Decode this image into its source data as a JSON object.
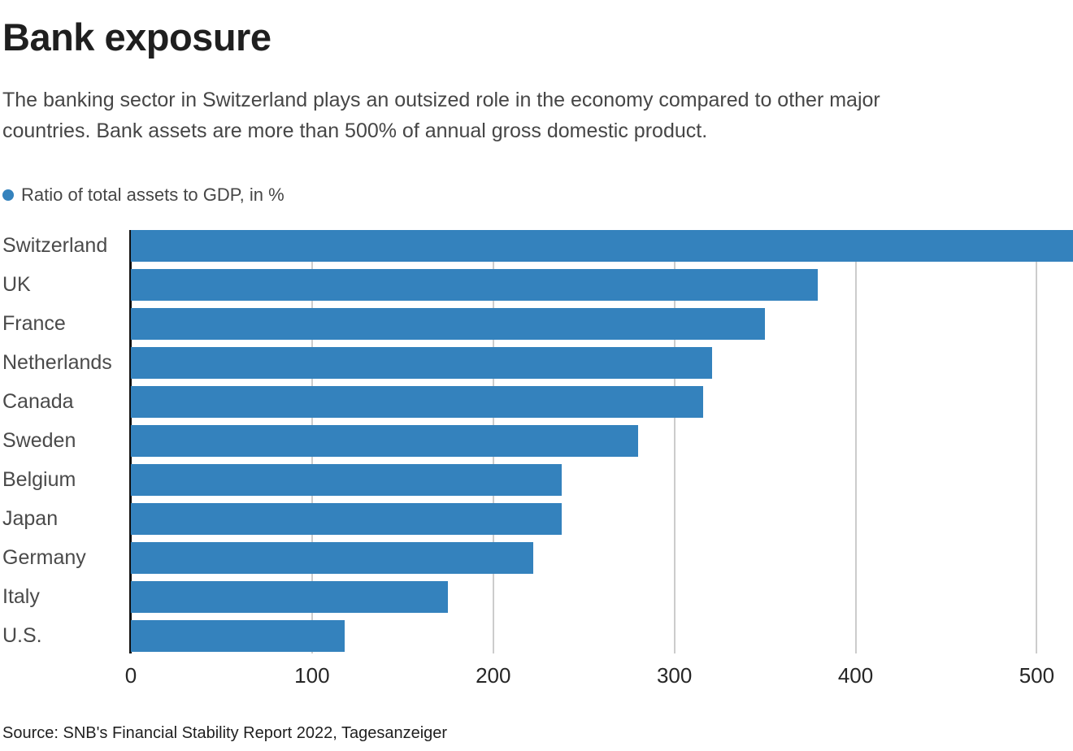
{
  "header": {
    "title": "Bank exposure",
    "subtitle_lines": [
      "The banking sector in Switzerland plays an outsized role in the economy compared to other major",
      "countries. Bank assets are more than 500% of annual gross domestic product."
    ]
  },
  "legend": {
    "label": "Ratio of total assets to GDP, in %"
  },
  "chart_data": {
    "type": "bar",
    "orientation": "horizontal",
    "title": "Bank exposure",
    "series_label": "Ratio of total assets to GDP, in %",
    "categories": [
      "Switzerland",
      "UK",
      "France",
      "Netherlands",
      "Canada",
      "Sweden",
      "Belgium",
      "Japan",
      "Germany",
      "Italy",
      "U.S."
    ],
    "values": [
      520,
      379,
      350,
      321,
      316,
      280,
      238,
      238,
      222,
      175,
      118
    ],
    "xlabel": "",
    "ylabel": "",
    "xlim": [
      0,
      520
    ],
    "xticks": [
      0,
      100,
      200,
      300,
      400,
      500
    ],
    "grid": "vertical-light-gray",
    "legend_position": "top-left",
    "bar_color": "#3482bd"
  },
  "colors": {
    "bar": "#3482bd",
    "title": "#1f1f1f",
    "subtitle": "#464646",
    "gridline": "#cccccc",
    "baseline": "#111111",
    "axis_text": "#262626"
  },
  "source": "Source: SNB's Financial Stability Report 2022, Tagesanzeiger"
}
